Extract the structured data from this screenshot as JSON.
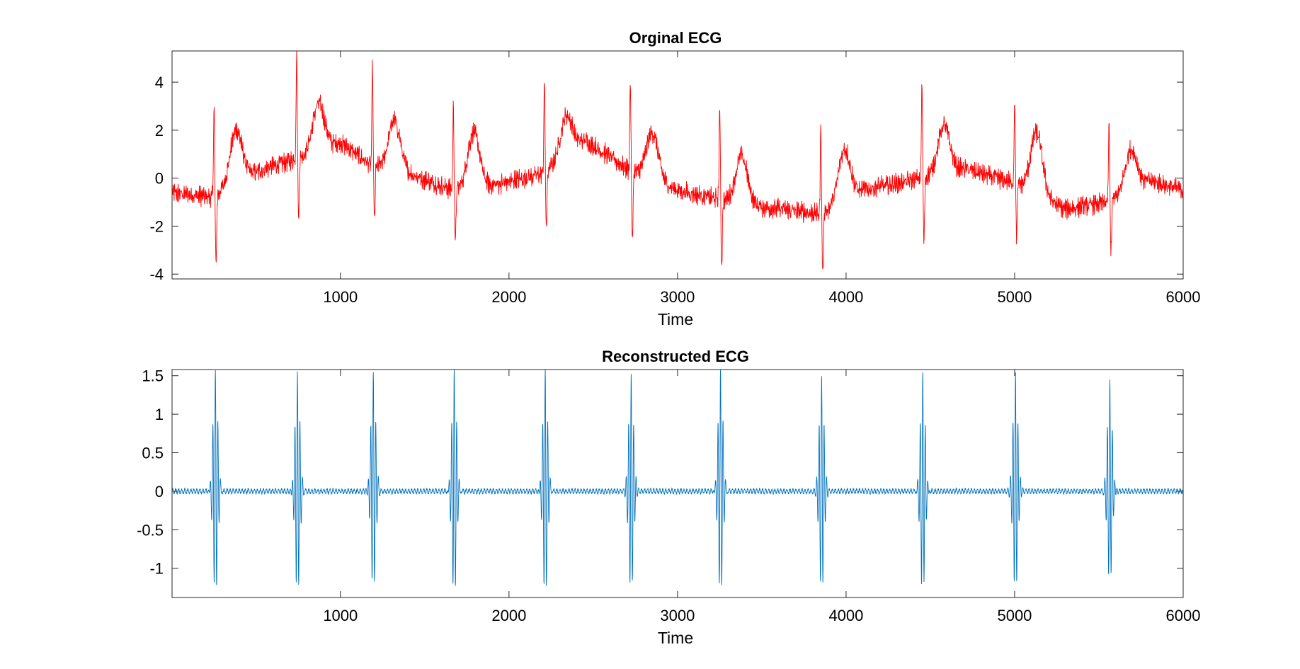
{
  "chart_data": [
    {
      "type": "line",
      "title": "Orginal ECG",
      "xlabel": "Time",
      "ylabel": "",
      "xlim": [
        1,
        6000
      ],
      "ylim": [
        -4.2,
        5.3
      ],
      "xticks": [
        1000,
        2000,
        3000,
        4000,
        5000,
        6000
      ],
      "yticks": [
        -4,
        -2,
        0,
        2,
        4
      ],
      "xtick_labels": [
        "1000",
        "2000",
        "3000",
        "4000",
        "5000",
        "6000"
      ],
      "ytick_labels": [
        "-4",
        "-2",
        "0",
        "2",
        "4"
      ],
      "color": "#ff0000",
      "series": [
        {
          "name": "Orginal ECG",
          "beats": [
            {
              "r": 250,
              "rpeak": 3.2,
              "smin": -3.8,
              "tpos": 380,
              "tamp": 2.0
            },
            {
              "r": 740,
              "rpeak": 5.3,
              "smin": -1.8,
              "tpos": 870,
              "tamp": 3.1
            },
            {
              "r": 1190,
              "rpeak": 4.7,
              "smin": -1.9,
              "tpos": 1320,
              "tamp": 2.4
            },
            {
              "r": 1670,
              "rpeak": 3.1,
              "smin": -2.8,
              "tpos": 1790,
              "tamp": 1.9
            },
            {
              "r": 2210,
              "rpeak": 4.1,
              "smin": -2.2,
              "tpos": 2340,
              "tamp": 2.6
            },
            {
              "r": 2720,
              "rpeak": 4.1,
              "smin": -2.8,
              "tpos": 2850,
              "tamp": 1.9
            },
            {
              "r": 3250,
              "rpeak": 3.1,
              "smin": -3.7,
              "tpos": 3380,
              "tamp": 0.9
            },
            {
              "r": 3850,
              "rpeak": 2.0,
              "smin": -4.2,
              "tpos": 3990,
              "tamp": 1.2
            },
            {
              "r": 4450,
              "rpeak": 3.9,
              "smin": -2.8,
              "tpos": 4580,
              "tamp": 2.2
            },
            {
              "r": 5000,
              "rpeak": 3.3,
              "smin": -2.4,
              "tpos": 5130,
              "tamp": 1.9
            },
            {
              "r": 5560,
              "rpeak": 2.3,
              "smin": -3.1,
              "tpos": 5690,
              "tamp": 1.2
            }
          ],
          "baseline": [
            [
              1,
              -0.6
            ],
            [
              250,
              -0.8
            ],
            [
              400,
              0.0
            ],
            [
              600,
              0.5
            ],
            [
              740,
              0.8
            ],
            [
              1000,
              1.5
            ],
            [
              1190,
              0.5
            ],
            [
              1400,
              0.2
            ],
            [
              1670,
              -0.5
            ],
            [
              1900,
              -0.3
            ],
            [
              2210,
              0.2
            ],
            [
              2450,
              1.6
            ],
            [
              2720,
              0.3
            ],
            [
              3000,
              -0.5
            ],
            [
              3250,
              -0.9
            ],
            [
              3500,
              -1.2
            ],
            [
              3850,
              -1.5
            ],
            [
              4100,
              -0.5
            ],
            [
              4450,
              0.0
            ],
            [
              4700,
              0.4
            ],
            [
              5000,
              -0.2
            ],
            [
              5300,
              -1.3
            ],
            [
              5560,
              -1.0
            ],
            [
              5800,
              -0.1
            ],
            [
              6000,
              -0.5
            ]
          ],
          "noise_amp": 0.3
        }
      ]
    },
    {
      "type": "line",
      "title": "Reconstructed ECG",
      "xlabel": "Time",
      "ylabel": "",
      "xlim": [
        1,
        6000
      ],
      "ylim": [
        -1.38,
        1.58
      ],
      "xticks": [
        1000,
        2000,
        3000,
        4000,
        5000,
        6000
      ],
      "yticks": [
        -1,
        -0.5,
        0,
        0.5,
        1,
        1.5
      ],
      "xtick_labels": [
        "1000",
        "2000",
        "3000",
        "4000",
        "5000",
        "6000"
      ],
      "ytick_labels": [
        "-1",
        "-0.5",
        "0",
        "0.5",
        "1",
        "1.5"
      ],
      "color": "#0072bd",
      "series": [
        {
          "name": "Reconstructed ECG",
          "peaks": [
            {
              "t": 258,
              "max": 1.55,
              "min": -1.38
            },
            {
              "t": 745,
              "max": 1.55,
              "min": -1.38
            },
            {
              "t": 1195,
              "max": 1.55,
              "min": -1.35
            },
            {
              "t": 1675,
              "max": 1.57,
              "min": -1.38
            },
            {
              "t": 2215,
              "max": 1.57,
              "min": -1.38
            },
            {
              "t": 2725,
              "max": 1.55,
              "min": -1.38
            },
            {
              "t": 3255,
              "max": 1.57,
              "min": -1.38
            },
            {
              "t": 3855,
              "max": 1.52,
              "min": -1.38
            },
            {
              "t": 4455,
              "max": 1.52,
              "min": -1.35
            },
            {
              "t": 5005,
              "max": 1.57,
              "min": -1.38
            },
            {
              "t": 5565,
              "max": 1.44,
              "min": -1.24
            }
          ],
          "noise_amp": 0.04
        }
      ]
    }
  ]
}
